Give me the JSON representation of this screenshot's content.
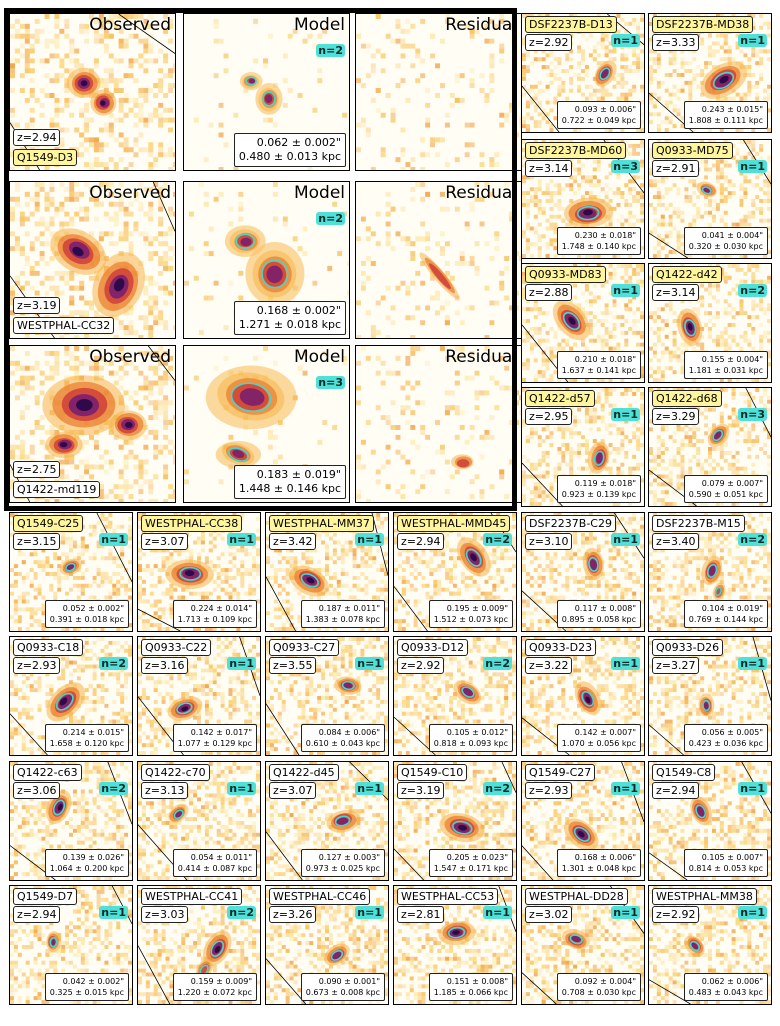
{
  "big_rows": [
    {
      "name": "Q1549-D3",
      "highlight": true,
      "z": "z=2.94",
      "n": "n=2",
      "size_arcsec": "0.062 ± 0.002\"",
      "size_kpc": "0.480 ± 0.013 kpc"
    },
    {
      "name": "WESTPHAL-CC32",
      "highlight": false,
      "z": "z=3.19",
      "n": "n=2",
      "size_arcsec": "0.168 ± 0.002\"",
      "size_kpc": "1.271 ± 0.018 kpc"
    },
    {
      "name": "Q1422-md119",
      "highlight": false,
      "z": "z=2.75",
      "n": "n=3",
      "size_arcsec": "0.183 ± 0.019\"",
      "size_kpc": "1.448 ± 0.146 kpc"
    }
  ],
  "column_titles": {
    "observed": "Observed",
    "model": "Model",
    "residual": "Residual"
  },
  "small_panels": [
    {
      "name": "DSF2237B-D13",
      "highlight": true,
      "z": "z=2.92",
      "n": "n=1",
      "arcsec": "0.093 ± 0.006\"",
      "kpc": "0.722 ± 0.049 kpc"
    },
    {
      "name": "DSF2237B-MD38",
      "highlight": true,
      "z": "z=3.33",
      "n": "n=1",
      "arcsec": "0.243 ± 0.015\"",
      "kpc": "1.808 ± 0.111 kpc"
    },
    {
      "name": "DSF2237B-MD60",
      "highlight": true,
      "z": "z=3.14",
      "n": "n=3",
      "arcsec": "0.230 ± 0.018\"",
      "kpc": "1.748 ± 0.140 kpc"
    },
    {
      "name": "Q0933-MD75",
      "highlight": true,
      "z": "z=2.91",
      "n": "n=1",
      "arcsec": "0.041 ± 0.004\"",
      "kpc": "0.320 ± 0.030 kpc"
    },
    {
      "name": "Q0933-MD83",
      "highlight": true,
      "z": "z=2.88",
      "n": "n=1",
      "arcsec": "0.210 ± 0.018\"",
      "kpc": "1.637 ± 0.141 kpc"
    },
    {
      "name": "Q1422-d42",
      "highlight": true,
      "z": "z=3.14",
      "n": "n=2",
      "arcsec": "0.155 ± 0.004\"",
      "kpc": "1.181 ± 0.031 kpc"
    },
    {
      "name": "Q1422-d57",
      "highlight": true,
      "z": "z=2.95",
      "n": "n=1",
      "arcsec": "0.119 ± 0.018\"",
      "kpc": "0.923 ± 0.139 kpc"
    },
    {
      "name": "Q1422-d68",
      "highlight": true,
      "z": "z=3.29",
      "n": "n=3",
      "arcsec": "0.079 ± 0.007\"",
      "kpc": "0.590 ± 0.051 kpc"
    },
    {
      "name": "Q1549-C25",
      "highlight": true,
      "z": "z=3.15",
      "n": "n=1",
      "arcsec": "0.052 ± 0.002\"",
      "kpc": "0.391 ± 0.018 kpc"
    },
    {
      "name": "WESTPHAL-CC38",
      "highlight": true,
      "z": "z=3.07",
      "n": "n=1",
      "arcsec": "0.224 ± 0.014\"",
      "kpc": "1.713 ± 0.109 kpc"
    },
    {
      "name": "WESTPHAL-MM37",
      "highlight": true,
      "z": "z=3.42",
      "n": "n=1",
      "arcsec": "0.187 ± 0.011\"",
      "kpc": "1.383 ± 0.078 kpc"
    },
    {
      "name": "WESTPHAL-MMD45",
      "highlight": true,
      "z": "z=2.94",
      "n": "n=2",
      "arcsec": "0.195 ± 0.009\"",
      "kpc": "1.512 ± 0.073 kpc"
    },
    {
      "name": "DSF2237B-C29",
      "highlight": false,
      "z": "z=3.10",
      "n": "n=1",
      "arcsec": "0.117 ± 0.008\"",
      "kpc": "0.895 ± 0.058 kpc"
    },
    {
      "name": "DSF2237B-M15",
      "highlight": false,
      "z": "z=3.40",
      "n": "n=2",
      "arcsec": "0.104 ± 0.019\"",
      "kpc": "0.769 ± 0.144 kpc"
    },
    {
      "name": "Q0933-C18",
      "highlight": false,
      "z": "z=2.93",
      "n": "n=2",
      "arcsec": "0.214 ± 0.015\"",
      "kpc": "1.658 ± 0.120 kpc"
    },
    {
      "name": "Q0933-C22",
      "highlight": false,
      "z": "z=3.16",
      "n": "n=1",
      "arcsec": "0.142 ± 0.017\"",
      "kpc": "1.077 ± 0.129 kpc"
    },
    {
      "name": "Q0933-C27",
      "highlight": false,
      "z": "z=3.55",
      "n": "n=1",
      "arcsec": "0.084 ± 0.006\"",
      "kpc": "0.610 ± 0.043 kpc"
    },
    {
      "name": "Q0933-D12",
      "highlight": false,
      "z": "z=2.92",
      "n": "n=2",
      "arcsec": "0.105 ± 0.012\"",
      "kpc": "0.818 ± 0.093 kpc"
    },
    {
      "name": "Q0933-D23",
      "highlight": false,
      "z": "z=3.22",
      "n": "n=1",
      "arcsec": "0.142 ± 0.007\"",
      "kpc": "1.070 ± 0.056 kpc"
    },
    {
      "name": "Q0933-D26",
      "highlight": false,
      "z": "z=3.27",
      "n": "n=1",
      "arcsec": "0.056 ± 0.005\"",
      "kpc": "0.423 ± 0.036 kpc"
    },
    {
      "name": "Q1422-c63",
      "highlight": false,
      "z": "z=3.06",
      "n": "n=2",
      "arcsec": "0.139 ± 0.026\"",
      "kpc": "1.064 ± 0.200 kpc"
    },
    {
      "name": "Q1422-c70",
      "highlight": false,
      "z": "z=3.13",
      "n": "n=1",
      "arcsec": "0.054 ± 0.011\"",
      "kpc": "0.414 ± 0.087 kpc"
    },
    {
      "name": "Q1422-d45",
      "highlight": false,
      "z": "z=3.07",
      "n": "n=1",
      "arcsec": "0.127 ± 0.003\"",
      "kpc": "0.973 ± 0.025 kpc"
    },
    {
      "name": "Q1549-C10",
      "highlight": false,
      "z": "z=3.19",
      "n": "n=2",
      "arcsec": "0.205 ± 0.023\"",
      "kpc": "1.547 ± 0.171 kpc"
    },
    {
      "name": "Q1549-C27",
      "highlight": false,
      "z": "z=2.93",
      "n": "n=1",
      "arcsec": "0.168 ± 0.006\"",
      "kpc": "1.301 ± 0.048 kpc"
    },
    {
      "name": "Q1549-C8",
      "highlight": false,
      "z": "z=2.94",
      "n": "n=1",
      "arcsec": "0.105 ± 0.007\"",
      "kpc": "0.814 ± 0.053 kpc"
    },
    {
      "name": "Q1549-D7",
      "highlight": false,
      "z": "z=2.94",
      "n": "n=1",
      "arcsec": "0.042 ± 0.002\"",
      "kpc": "0.325 ± 0.015 kpc"
    },
    {
      "name": "WESTPHAL-CC41",
      "highlight": false,
      "z": "z=3.03",
      "n": "n=2",
      "arcsec": "0.159 ± 0.009\"",
      "kpc": "1.220 ± 0.072 kpc"
    },
    {
      "name": "WESTPHAL-CC46",
      "highlight": false,
      "z": "z=3.26",
      "n": "n=1",
      "arcsec": "0.090 ± 0.001\"",
      "kpc": "0.673 ± 0.008 kpc"
    },
    {
      "name": "WESTPHAL-CC53",
      "highlight": false,
      "z": "z=2.81",
      "n": "n=1",
      "arcsec": "0.151 ± 0.008\"",
      "kpc": "1.185 ± 0.066 kpc"
    },
    {
      "name": "WESTPHAL-DD28",
      "highlight": false,
      "z": "z=3.02",
      "n": "n=1",
      "arcsec": "0.092 ± 0.004\"",
      "kpc": "0.708 ± 0.030 kpc"
    },
    {
      "name": "WESTPHAL-MM38",
      "highlight": false,
      "z": "z=2.92",
      "n": "n=1",
      "arcsec": "0.062 ± 0.006\"",
      "kpc": "0.483 ± 0.043 kpc"
    }
  ],
  "colors": {
    "background": "#fffdf4",
    "ellipse": "#3fd9cf",
    "badge": "#4fe0d8",
    "highlight": "#fff59d"
  }
}
